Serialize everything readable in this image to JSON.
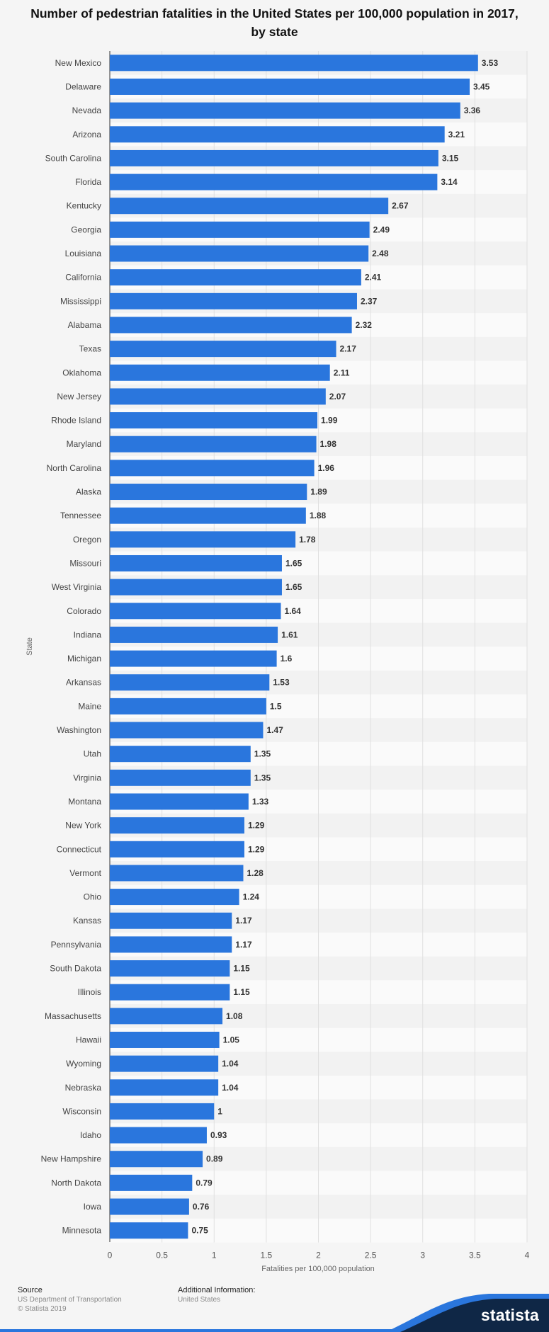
{
  "chart_data": {
    "type": "bar",
    "orientation": "horizontal",
    "title": "Number of pedestrian fatalities in the United States per 100,000 population in 2017, by state",
    "xlabel": "Fatalities per 100,000 population",
    "ylabel": "State",
    "xlim": [
      0,
      4
    ],
    "xticks": [
      "0",
      "0.5",
      "1",
      "1.5",
      "2",
      "2.5",
      "3",
      "3.5",
      "4"
    ],
    "grid": true,
    "bar_color": "#2a76dd",
    "categories": [
      "New Mexico",
      "Delaware",
      "Nevada",
      "Arizona",
      "South Carolina",
      "Florida",
      "Kentucky",
      "Georgia",
      "Louisiana",
      "California",
      "Mississippi",
      "Alabama",
      "Texas",
      "Oklahoma",
      "New Jersey",
      "Rhode Island",
      "Maryland",
      "North Carolina",
      "Alaska",
      "Tennessee",
      "Oregon",
      "Missouri",
      "West Virginia",
      "Colorado",
      "Indiana",
      "Michigan",
      "Arkansas",
      "Maine",
      "Washington",
      "Utah",
      "Virginia",
      "Montana",
      "New York",
      "Connecticut",
      "Vermont",
      "Ohio",
      "Kansas",
      "Pennsylvania",
      "South Dakota",
      "Illinois",
      "Massachusetts",
      "Hawaii",
      "Wyoming",
      "Nebraska",
      "Wisconsin",
      "Idaho",
      "New Hampshire",
      "North Dakota",
      "Iowa",
      "Minnesota"
    ],
    "values": [
      3.53,
      3.45,
      3.36,
      3.21,
      3.15,
      3.14,
      2.67,
      2.49,
      2.48,
      2.41,
      2.37,
      2.32,
      2.17,
      2.11,
      2.07,
      1.99,
      1.98,
      1.96,
      1.89,
      1.88,
      1.78,
      1.65,
      1.65,
      1.64,
      1.61,
      1.6,
      1.53,
      1.5,
      1.47,
      1.35,
      1.35,
      1.33,
      1.29,
      1.29,
      1.28,
      1.24,
      1.17,
      1.17,
      1.15,
      1.15,
      1.08,
      1.05,
      1.04,
      1.04,
      1,
      0.93,
      0.89,
      0.79,
      0.76,
      0.75
    ]
  },
  "footer": {
    "source_heading": "Source",
    "source_line1": "US Department of Transportation",
    "source_line2": "© Statista 2019",
    "info_heading": "Additional Information:",
    "info_line1": "United States"
  },
  "brand": {
    "logo_text": "statista",
    "banner_color": "#0f2746",
    "accent_color": "#2a76dd"
  }
}
